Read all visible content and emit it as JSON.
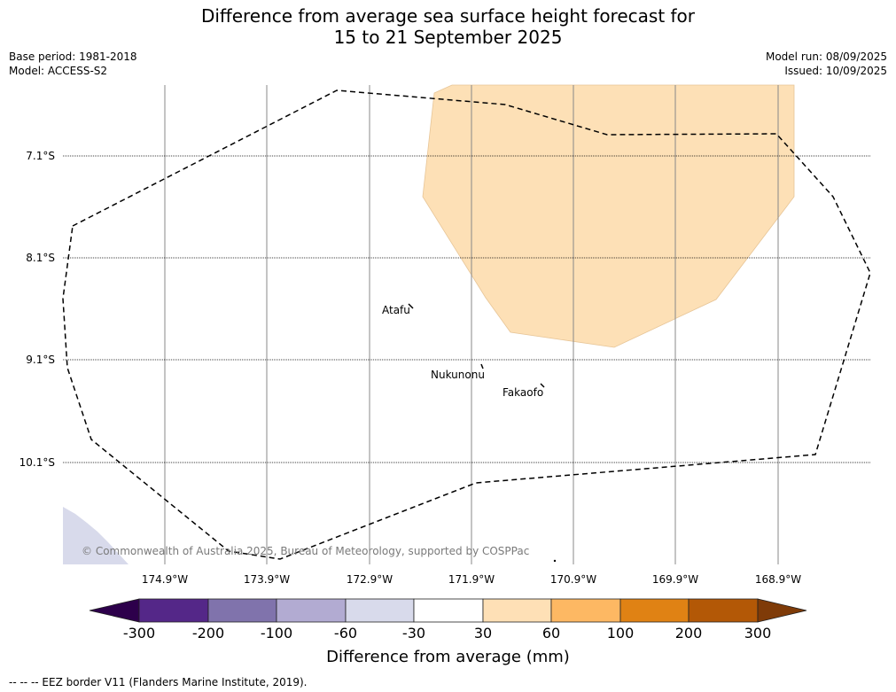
{
  "title": {
    "line1": "Difference from average sea surface height forecast for",
    "line2": "15 to 21 September 2025"
  },
  "meta": {
    "base_period": "Base period: 1981-2018",
    "model": "Model: ACCESS-S2",
    "model_run": "Model run: 08/09/2025",
    "issued": "Issued: 10/09/2025"
  },
  "map": {
    "latitudes": [
      "7.1°S",
      "8.1°S",
      "9.1°S",
      "10.1°S"
    ],
    "longitudes": [
      "174.9°W",
      "173.9°W",
      "172.9°W",
      "171.9°W",
      "170.9°W",
      "169.9°W",
      "168.9°W"
    ],
    "places": [
      "Atafu",
      "Nukunonu",
      "Fakaofo"
    ],
    "copyright": "© Commonwealth of Australia 2025, Bureau of Meteorology, supported by COSPPac",
    "anomaly_region_color": "#fde0b6",
    "low_region_color": "#d8daeb"
  },
  "colorbar": {
    "ticks": [
      "-300",
      "-200",
      "-100",
      "-60",
      "-30",
      "30",
      "60",
      "100",
      "200",
      "300"
    ],
    "colors": [
      "#2d004b",
      "#542788",
      "#8073ac",
      "#b2abd2",
      "#d8daeb",
      "#ffffff",
      "#fee0b6",
      "#fdb863",
      "#e08214",
      "#b35806",
      "#7f3b08"
    ],
    "label": "Difference from average (mm)"
  },
  "legend": {
    "eez_note": "--  --  -- EEZ border V11 (Flanders Marine Institute, 2019)."
  }
}
